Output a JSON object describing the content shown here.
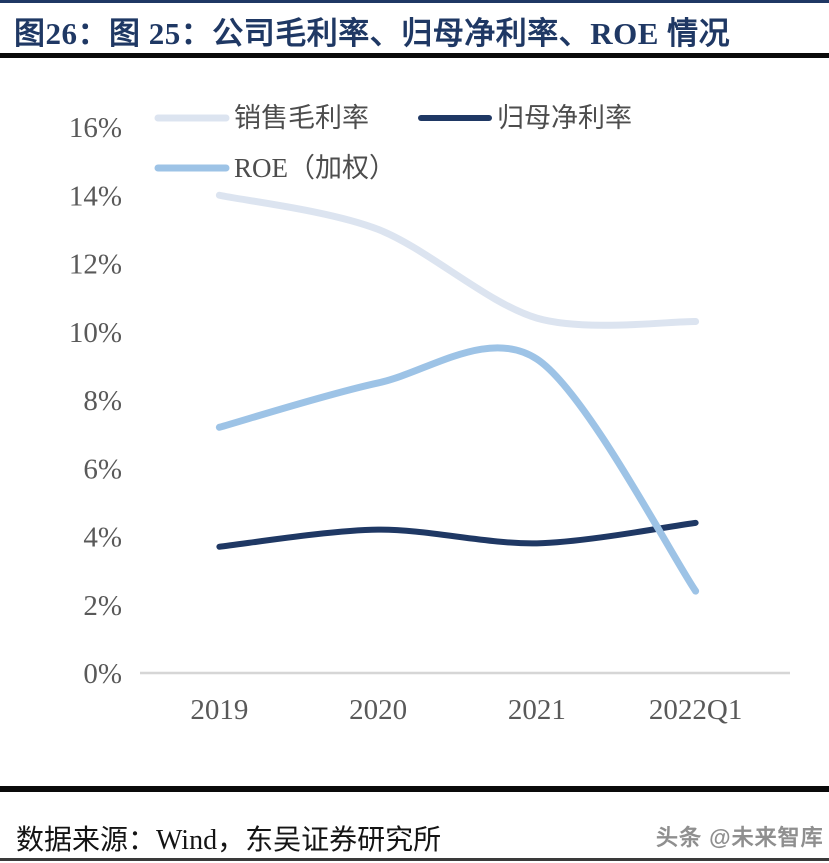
{
  "title": "图26：图 25：公司毛利率、归母净利率、ROE 情况",
  "source_line": "数据来源：Wind，东吴证券研究所",
  "watermark": "头条 @未来智库",
  "colors": {
    "title_navy": "#1f3864",
    "gross_margin_line": "#dce4f0",
    "net_margin_line": "#1f3864",
    "roe_line": "#9dc3e6",
    "axis_line": "#d6d6d6",
    "tick_text": "#595959"
  },
  "chart_data": {
    "type": "line",
    "categories": [
      "2019",
      "2020",
      "2021",
      "2022Q1"
    ],
    "series": [
      {
        "id": "gross-margin",
        "name": "销售毛利率",
        "values": [
          14.0,
          13.0,
          10.4,
          10.3
        ],
        "color": "#dce4f0",
        "width": 7
      },
      {
        "id": "net-margin",
        "name": "归母净利率",
        "values": [
          3.7,
          4.2,
          3.8,
          4.4
        ],
        "color": "#1f3864",
        "width": 6
      },
      {
        "id": "roe-weighted",
        "name": "ROE（加权）",
        "values": [
          7.2,
          8.5,
          9.2,
          2.4
        ],
        "color": "#9dc3e6",
        "width": 7
      }
    ],
    "ylim": [
      0,
      16
    ],
    "ytick_step": 2,
    "ytick_labels": [
      "0%",
      "2%",
      "4%",
      "6%",
      "8%",
      "10%",
      "12%",
      "14%",
      "16%"
    ],
    "grid": false,
    "smooth": true,
    "legend_position": "top-left"
  }
}
